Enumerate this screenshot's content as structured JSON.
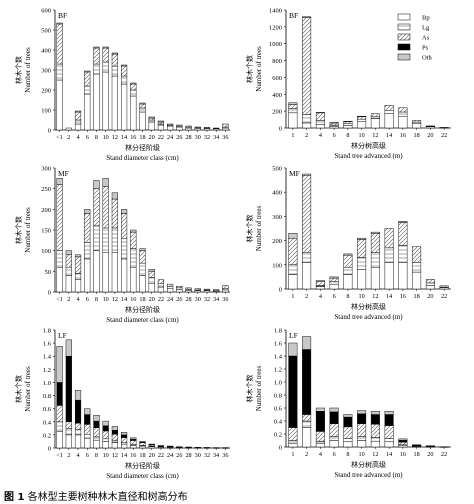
{
  "figure": {
    "caption_label": "图 1",
    "caption_text": "各林型主要树种林木直径和树高分布",
    "legend": [
      "Bp",
      "Lg",
      "As",
      "Ps",
      "Oth"
    ],
    "colors": {
      "Bp": "#ffffff",
      "Lg": "#ffffff",
      "As": "#ffffff",
      "Ps": "#000000",
      "Oth": "#c8c8c8",
      "axis": "#000000"
    }
  },
  "chart_data": [
    {
      "type": "bar",
      "panel": "BF",
      "stacked": true,
      "ylabel_cn": "林木个数",
      "ylabel": "Number of trees",
      "xlabel_cn": "林分径阶级",
      "xlabel": "Stand diameter class (cm)",
      "ylim": [
        0,
        600
      ],
      "yticks": [
        0,
        100,
        200,
        300,
        400,
        500,
        600
      ],
      "categories": [
        "<1",
        "2",
        "4",
        "6",
        "8",
        "10",
        "12",
        "14",
        "16",
        "18",
        "20",
        "22",
        "24",
        "26",
        "28",
        "30",
        "32",
        "34",
        "36"
      ],
      "xticklabels": [
        "<1",
        "2",
        "4",
        "6",
        "8",
        "10",
        "12",
        "14",
        "16",
        "18",
        "20",
        "22",
        "24",
        "26",
        "28",
        "30",
        "32",
        "34",
        "36"
      ],
      "series": [
        {
          "name": "Bp",
          "values": [
            250,
            10,
            30,
            180,
            280,
            290,
            270,
            230,
            170,
            90,
            40,
            25,
            20,
            15,
            10,
            8,
            8,
            6,
            10
          ]
        },
        {
          "name": "Lg",
          "values": [
            80,
            0,
            20,
            40,
            50,
            50,
            50,
            40,
            30,
            20,
            10,
            5,
            5,
            5,
            5,
            3,
            2,
            2,
            5
          ]
        },
        {
          "name": "As",
          "values": [
            200,
            0,
            40,
            70,
            80,
            70,
            60,
            50,
            30,
            20,
            10,
            10,
            5,
            5,
            5,
            4,
            3,
            2,
            15
          ]
        },
        {
          "name": "Ps",
          "values": [
            0,
            0,
            0,
            0,
            0,
            0,
            0,
            0,
            0,
            0,
            0,
            0,
            0,
            0,
            0,
            0,
            0,
            0,
            0
          ]
        },
        {
          "name": "Oth",
          "values": [
            5,
            0,
            5,
            5,
            5,
            5,
            5,
            5,
            5,
            5,
            5,
            5,
            0,
            0,
            0,
            0,
            0,
            0,
            0
          ]
        }
      ]
    },
    {
      "type": "bar",
      "panel": "BF",
      "stacked": true,
      "ylabel_cn": "林木个数",
      "ylabel": "Number of trees",
      "xlabel_cn": "林分树高级",
      "xlabel": "Stand tree advanced (m)",
      "ylim": [
        0,
        1400
      ],
      "yticks": [
        0,
        200,
        400,
        600,
        800,
        1000,
        1200,
        1400
      ],
      "categories": [
        "<1",
        "2",
        "4",
        "6",
        "8",
        "10",
        "12",
        "14",
        "16",
        "18",
        "20",
        "22"
      ],
      "xticklabels": [
        "1",
        "2",
        "4",
        "6",
        "8",
        "10",
        "12",
        "14",
        "16",
        "18",
        "20",
        "22"
      ],
      "series": [
        {
          "name": "Bp",
          "values": [
            180,
            60,
            40,
            20,
            30,
            80,
            110,
            170,
            140,
            50,
            15,
            5
          ]
        },
        {
          "name": "Lg",
          "values": [
            50,
            100,
            50,
            15,
            20,
            25,
            30,
            40,
            50,
            20,
            5,
            0
          ]
        },
        {
          "name": "As",
          "values": [
            50,
            1150,
            90,
            25,
            25,
            30,
            30,
            60,
            50,
            20,
            5,
            2
          ]
        },
        {
          "name": "Ps",
          "values": [
            0,
            0,
            0,
            0,
            0,
            0,
            0,
            0,
            0,
            0,
            0,
            0
          ]
        },
        {
          "name": "Oth",
          "values": [
            20,
            10,
            5,
            5,
            5,
            5,
            0,
            0,
            0,
            0,
            0,
            0
          ]
        }
      ]
    },
    {
      "type": "bar",
      "panel": "MF",
      "stacked": true,
      "ylabel_cn": "林木个数",
      "ylabel": "Number of trees",
      "xlabel_cn": "林分径阶级",
      "xlabel": "Stand diameter class (cm)",
      "ylim": [
        0,
        300
      ],
      "yticks": [
        0,
        50,
        100,
        150,
        200,
        250,
        300
      ],
      "categories": [
        "<1",
        "2",
        "4",
        "6",
        "8",
        "10",
        "12",
        "14",
        "16",
        "18",
        "20",
        "22",
        "24",
        "26",
        "28",
        "30",
        "32",
        "34",
        "36"
      ],
      "xticklabels": [
        "<1",
        "2",
        "4",
        "6",
        "8",
        "10",
        "12",
        "14",
        "16",
        "18",
        "20",
        "22",
        "24",
        "26",
        "28",
        "30",
        "32",
        "34",
        "36"
      ],
      "series": [
        {
          "name": "Bp",
          "values": [
            60,
            40,
            30,
            80,
            100,
            95,
            95,
            80,
            60,
            40,
            20,
            12,
            8,
            6,
            4,
            3,
            3,
            2,
            5
          ]
        },
        {
          "name": "Lg",
          "values": [
            40,
            20,
            15,
            40,
            60,
            60,
            60,
            50,
            45,
            30,
            15,
            8,
            5,
            4,
            3,
            2,
            2,
            2,
            3
          ]
        },
        {
          "name": "As",
          "values": [
            160,
            30,
            40,
            70,
            90,
            100,
            70,
            60,
            40,
            30,
            15,
            10,
            6,
            4,
            3,
            3,
            2,
            2,
            8
          ]
        },
        {
          "name": "Ps",
          "values": [
            0,
            0,
            0,
            0,
            0,
            0,
            0,
            0,
            0,
            0,
            0,
            0,
            0,
            0,
            0,
            0,
            0,
            0,
            0
          ]
        },
        {
          "name": "Oth",
          "values": [
            15,
            10,
            5,
            10,
            20,
            20,
            15,
            10,
            5,
            5,
            5,
            0,
            0,
            0,
            0,
            0,
            0,
            0,
            0
          ]
        }
      ]
    },
    {
      "type": "bar",
      "panel": "MF",
      "stacked": true,
      "ylabel_cn": "林木个数",
      "ylabel": "Number of trees",
      "xlabel_cn": "林分树高级",
      "xlabel": "Stand tree advanced (m)",
      "ylim": [
        0,
        500
      ],
      "yticks": [
        0,
        100,
        200,
        300,
        400,
        500
      ],
      "categories": [
        "<1",
        "2",
        "4",
        "6",
        "8",
        "10",
        "12",
        "14",
        "16",
        "18",
        "20",
        "22"
      ],
      "xticklabels": [
        "1",
        "2",
        "4",
        "6",
        "8",
        "10",
        "12",
        "14",
        "16",
        "18",
        "20",
        "22"
      ],
      "series": [
        {
          "name": "Bp",
          "values": [
            60,
            110,
            10,
            20,
            60,
            80,
            90,
            110,
            110,
            70,
            15,
            5
          ]
        },
        {
          "name": "Lg",
          "values": [
            40,
            40,
            5,
            10,
            30,
            50,
            60,
            60,
            70,
            40,
            10,
            3
          ]
        },
        {
          "name": "As",
          "values": [
            110,
            320,
            15,
            15,
            50,
            75,
            80,
            80,
            95,
            65,
            15,
            5
          ]
        },
        {
          "name": "Ps",
          "values": [
            0,
            0,
            0,
            0,
            0,
            0,
            0,
            0,
            0,
            0,
            0,
            0
          ]
        },
        {
          "name": "Oth",
          "values": [
            20,
            5,
            5,
            5,
            5,
            5,
            5,
            0,
            5,
            0,
            0,
            0
          ]
        }
      ]
    },
    {
      "type": "bar",
      "panel": "LF",
      "stacked": true,
      "ylabel_cn": "林木个数",
      "ylabel": "Number of trees",
      "xlabel_cn": "林分径阶级",
      "xlabel": "Stand diameter class (cm)",
      "ylim": [
        0,
        1800
      ],
      "yticks": [
        0,
        200,
        400,
        600,
        800,
        1000,
        1200,
        1400,
        1600,
        1800
      ],
      "ytickformat": "decimal1",
      "categories": [
        "<1",
        "2",
        "4",
        "6",
        "8",
        "10",
        "12",
        "14",
        "16",
        "18",
        "20",
        "22",
        "24",
        "26",
        "28",
        "30",
        "32",
        "34",
        "36"
      ],
      "xticklabels": [
        "<1",
        "2",
        "4",
        "6",
        "8",
        "10",
        "12",
        "14",
        "16",
        "18",
        "20",
        "22",
        "24",
        "26",
        "28",
        "30",
        "32",
        "34",
        "36"
      ],
      "series": [
        {
          "name": "Bp",
          "values": [
            250,
            200,
            200,
            150,
            120,
            100,
            80,
            60,
            40,
            30,
            20,
            15,
            10,
            8,
            5,
            5,
            3,
            2,
            2
          ]
        },
        {
          "name": "Lg",
          "values": [
            150,
            100,
            80,
            60,
            50,
            40,
            30,
            20,
            15,
            10,
            8,
            5,
            5,
            3,
            3,
            2,
            2,
            1,
            1
          ]
        },
        {
          "name": "As",
          "values": [
            250,
            100,
            100,
            150,
            140,
            120,
            100,
            80,
            60,
            40,
            20,
            10,
            8,
            5,
            4,
            3,
            2,
            2,
            2
          ]
        },
        {
          "name": "Ps",
          "values": [
            350,
            1000,
            350,
            150,
            100,
            80,
            60,
            40,
            20,
            10,
            5,
            3,
            2,
            1,
            1,
            0,
            0,
            0,
            0
          ]
        },
        {
          "name": "Oth",
          "values": [
            550,
            250,
            150,
            90,
            90,
            70,
            60,
            40,
            20,
            10,
            7,
            5,
            5,
            3,
            2,
            2,
            1,
            1,
            1
          ]
        }
      ]
    },
    {
      "type": "bar",
      "panel": "LF",
      "stacked": true,
      "ylabel_cn": "林木个数",
      "ylabel": "Number of trees",
      "xlabel_cn": "林分树高级",
      "xlabel": "Stand tree advanced (m)",
      "ylim": [
        0,
        1800
      ],
      "yticks": [
        0,
        200,
        400,
        600,
        800,
        1000,
        1200,
        1400,
        1600,
        1800
      ],
      "ytickformat": "decimal1",
      "categories": [
        "<1",
        "2",
        "4",
        "6",
        "8",
        "10",
        "12",
        "14",
        "16",
        "18",
        "20",
        "22"
      ],
      "xticklabels": [
        "1",
        "2",
        "4",
        "6",
        "8",
        "10",
        "12",
        "14",
        "16",
        "18",
        "20",
        "22"
      ],
      "series": [
        {
          "name": "Bp",
          "values": [
            50,
            300,
            50,
            100,
            80,
            100,
            90,
            80,
            20,
            5,
            5,
            2
          ]
        },
        {
          "name": "Lg",
          "values": [
            50,
            100,
            40,
            60,
            50,
            60,
            60,
            50,
            15,
            5,
            3,
            1
          ]
        },
        {
          "name": "As",
          "values": [
            200,
            100,
            150,
            200,
            180,
            200,
            200,
            200,
            40,
            10,
            5,
            2
          ]
        },
        {
          "name": "Ps",
          "values": [
            1100,
            1000,
            310,
            180,
            150,
            150,
            150,
            170,
            30,
            10,
            2,
            0
          ]
        },
        {
          "name": "Oth",
          "values": [
            200,
            200,
            50,
            60,
            40,
            50,
            50,
            50,
            20,
            5,
            5,
            0
          ]
        }
      ]
    }
  ]
}
